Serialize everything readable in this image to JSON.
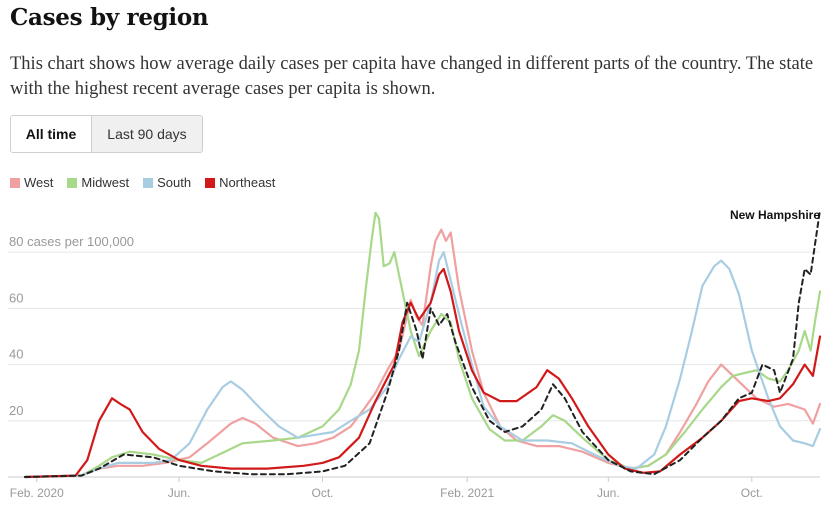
{
  "title": "Cases by region",
  "description": "This chart shows how average daily cases per capita have changed in different parts of the country. The state with the highest recent average cases per capita is shown.",
  "tabs": [
    {
      "label": "All time",
      "active": true
    },
    {
      "label": "Last 90 days",
      "active": false
    }
  ],
  "legend": [
    {
      "name": "West",
      "color": "#f0a0a0"
    },
    {
      "name": "Midwest",
      "color": "#a8d88a"
    },
    {
      "name": "South",
      "color": "#a8cde3"
    },
    {
      "name": "Northeast",
      "color": "#d11919"
    }
  ],
  "chart_data": {
    "type": "line",
    "ylim": [
      0,
      95
    ],
    "y_ticks": [
      20,
      40,
      60,
      80
    ],
    "y_tick_labels": [
      "20",
      "40",
      "60",
      "80 cases per 100,000"
    ],
    "x_tick_labels": [
      {
        "label": "Feb. 2020",
        "date": "2020-02-01"
      },
      {
        "label": "Jun.",
        "date": "2020-06-01"
      },
      {
        "label": "Oct.",
        "date": "2020-10-01"
      },
      {
        "label": "Feb. 2021",
        "date": "2021-02-01"
      },
      {
        "label": "Jun.",
        "date": "2021-06-01"
      },
      {
        "label": "Oct.",
        "date": "2021-10-01"
      }
    ],
    "highlight_label": "New Hampshire",
    "series": [
      {
        "name": "West",
        "color": "#f0a0a0",
        "points": [
          [
            "2020-01-22",
            0
          ],
          [
            "2020-03-10",
            0.5
          ],
          [
            "2020-03-25",
            3
          ],
          [
            "2020-04-10",
            4
          ],
          [
            "2020-05-01",
            4
          ],
          [
            "2020-05-20",
            5
          ],
          [
            "2020-06-10",
            7
          ],
          [
            "2020-06-25",
            12
          ],
          [
            "2020-07-15",
            19
          ],
          [
            "2020-07-25",
            21
          ],
          [
            "2020-08-05",
            19
          ],
          [
            "2020-08-20",
            14
          ],
          [
            "2020-09-10",
            11
          ],
          [
            "2020-09-25",
            12
          ],
          [
            "2020-10-10",
            14
          ],
          [
            "2020-10-25",
            18
          ],
          [
            "2020-11-05",
            24
          ],
          [
            "2020-11-15",
            30
          ],
          [
            "2020-11-25",
            38
          ],
          [
            "2020-12-05",
            45
          ],
          [
            "2020-12-10",
            54
          ],
          [
            "2020-12-15",
            63
          ],
          [
            "2020-12-20",
            57
          ],
          [
            "2020-12-25",
            54
          ],
          [
            "2021-01-01",
            75
          ],
          [
            "2021-01-05",
            84
          ],
          [
            "2021-01-10",
            88
          ],
          [
            "2021-01-14",
            84
          ],
          [
            "2021-01-18",
            87
          ],
          [
            "2021-01-25",
            67
          ],
          [
            "2021-02-05",
            45
          ],
          [
            "2021-02-15",
            30
          ],
          [
            "2021-03-01",
            18
          ],
          [
            "2021-03-15",
            13
          ],
          [
            "2021-04-01",
            11
          ],
          [
            "2021-04-20",
            11
          ],
          [
            "2021-05-10",
            9
          ],
          [
            "2021-06-01",
            5
          ],
          [
            "2021-06-20",
            3
          ],
          [
            "2021-07-05",
            4
          ],
          [
            "2021-07-20",
            8
          ],
          [
            "2021-08-01",
            16
          ],
          [
            "2021-08-15",
            26
          ],
          [
            "2021-08-25",
            34
          ],
          [
            "2021-09-05",
            40
          ],
          [
            "2021-09-15",
            36
          ],
          [
            "2021-09-25",
            32
          ],
          [
            "2021-10-05",
            28
          ],
          [
            "2021-10-20",
            25
          ],
          [
            "2021-11-01",
            26
          ],
          [
            "2021-11-15",
            24
          ],
          [
            "2021-11-22",
            19
          ],
          [
            "2021-11-28",
            26
          ]
        ]
      },
      {
        "name": "Midwest",
        "color": "#a8d88a",
        "points": [
          [
            "2020-01-22",
            0
          ],
          [
            "2020-03-10",
            0.5
          ],
          [
            "2020-03-25",
            4
          ],
          [
            "2020-04-05",
            7
          ],
          [
            "2020-04-20",
            9
          ],
          [
            "2020-05-10",
            8
          ],
          [
            "2020-06-01",
            6
          ],
          [
            "2020-06-20",
            5
          ],
          [
            "2020-07-10",
            9
          ],
          [
            "2020-07-25",
            12
          ],
          [
            "2020-08-20",
            13
          ],
          [
            "2020-09-10",
            14
          ],
          [
            "2020-10-01",
            18
          ],
          [
            "2020-10-15",
            24
          ],
          [
            "2020-10-25",
            33
          ],
          [
            "2020-11-01",
            45
          ],
          [
            "2020-11-07",
            68
          ],
          [
            "2020-11-12",
            85
          ],
          [
            "2020-11-15",
            94
          ],
          [
            "2020-11-18",
            92
          ],
          [
            "2020-11-22",
            75
          ],
          [
            "2020-11-27",
            76
          ],
          [
            "2020-12-01",
            80
          ],
          [
            "2020-12-08",
            66
          ],
          [
            "2020-12-15",
            52
          ],
          [
            "2020-12-22",
            43
          ],
          [
            "2021-01-01",
            52
          ],
          [
            "2021-01-10",
            58
          ],
          [
            "2021-01-18",
            55
          ],
          [
            "2021-01-25",
            42
          ],
          [
            "2021-02-05",
            28
          ],
          [
            "2021-02-20",
            17
          ],
          [
            "2021-03-05",
            13
          ],
          [
            "2021-03-20",
            13
          ],
          [
            "2021-04-05",
            18
          ],
          [
            "2021-04-15",
            22
          ],
          [
            "2021-04-25",
            20
          ],
          [
            "2021-05-10",
            14
          ],
          [
            "2021-06-01",
            6
          ],
          [
            "2021-06-20",
            3
          ],
          [
            "2021-07-05",
            4
          ],
          [
            "2021-07-20",
            8
          ],
          [
            "2021-08-05",
            16
          ],
          [
            "2021-08-20",
            24
          ],
          [
            "2021-09-05",
            32
          ],
          [
            "2021-09-15",
            36
          ],
          [
            "2021-09-25",
            37
          ],
          [
            "2021-10-05",
            38
          ],
          [
            "2021-10-15",
            35
          ],
          [
            "2021-10-25",
            34
          ],
          [
            "2021-11-01",
            38
          ],
          [
            "2021-11-10",
            45
          ],
          [
            "2021-11-15",
            52
          ],
          [
            "2021-11-20",
            45
          ],
          [
            "2021-11-24",
            56
          ],
          [
            "2021-11-28",
            66
          ]
        ]
      },
      {
        "name": "South",
        "color": "#a8cde3",
        "points": [
          [
            "2020-01-22",
            0
          ],
          [
            "2020-03-10",
            0.5
          ],
          [
            "2020-03-25",
            3
          ],
          [
            "2020-04-10",
            5
          ],
          [
            "2020-05-10",
            5
          ],
          [
            "2020-05-25",
            6
          ],
          [
            "2020-06-10",
            12
          ],
          [
            "2020-06-25",
            24
          ],
          [
            "2020-07-08",
            32
          ],
          [
            "2020-07-15",
            34
          ],
          [
            "2020-07-25",
            31
          ],
          [
            "2020-08-10",
            24
          ],
          [
            "2020-08-25",
            18
          ],
          [
            "2020-09-10",
            14
          ],
          [
            "2020-09-25",
            15
          ],
          [
            "2020-10-10",
            16
          ],
          [
            "2020-10-25",
            20
          ],
          [
            "2020-11-10",
            24
          ],
          [
            "2020-11-25",
            32
          ],
          [
            "2020-12-05",
            42
          ],
          [
            "2020-12-15",
            50
          ],
          [
            "2020-12-22",
            48
          ],
          [
            "2021-01-01",
            62
          ],
          [
            "2021-01-08",
            77
          ],
          [
            "2021-01-12",
            80
          ],
          [
            "2021-01-18",
            70
          ],
          [
            "2021-01-25",
            58
          ],
          [
            "2021-02-05",
            40
          ],
          [
            "2021-02-15",
            25
          ],
          [
            "2021-03-01",
            18
          ],
          [
            "2021-03-20",
            13
          ],
          [
            "2021-04-10",
            13
          ],
          [
            "2021-05-01",
            12
          ],
          [
            "2021-05-20",
            8
          ],
          [
            "2021-06-10",
            4
          ],
          [
            "2021-06-25",
            3
          ],
          [
            "2021-07-10",
            8
          ],
          [
            "2021-07-20",
            18
          ],
          [
            "2021-08-01",
            35
          ],
          [
            "2021-08-10",
            50
          ],
          [
            "2021-08-20",
            68
          ],
          [
            "2021-08-30",
            75
          ],
          [
            "2021-09-05",
            77
          ],
          [
            "2021-09-12",
            74
          ],
          [
            "2021-09-20",
            65
          ],
          [
            "2021-10-01",
            45
          ],
          [
            "2021-10-15",
            28
          ],
          [
            "2021-10-25",
            18
          ],
          [
            "2021-11-05",
            13
          ],
          [
            "2021-11-15",
            12
          ],
          [
            "2021-11-22",
            11
          ],
          [
            "2021-11-28",
            17
          ]
        ]
      },
      {
        "name": "Northeast",
        "color": "#d11919",
        "points": [
          [
            "2020-01-22",
            0
          ],
          [
            "2020-03-05",
            0.5
          ],
          [
            "2020-03-15",
            6
          ],
          [
            "2020-03-25",
            20
          ],
          [
            "2020-04-05",
            28
          ],
          [
            "2020-04-12",
            26
          ],
          [
            "2020-04-20",
            24
          ],
          [
            "2020-05-01",
            16
          ],
          [
            "2020-05-15",
            10
          ],
          [
            "2020-06-01",
            6
          ],
          [
            "2020-06-20",
            4
          ],
          [
            "2020-07-15",
            3
          ],
          [
            "2020-08-15",
            3
          ],
          [
            "2020-09-15",
            4
          ],
          [
            "2020-10-01",
            5
          ],
          [
            "2020-10-15",
            7
          ],
          [
            "2020-11-01",
            14
          ],
          [
            "2020-11-15",
            27
          ],
          [
            "2020-12-01",
            40
          ],
          [
            "2020-12-08",
            55
          ],
          [
            "2020-12-15",
            62
          ],
          [
            "2020-12-22",
            56
          ],
          [
            "2021-01-01",
            62
          ],
          [
            "2021-01-08",
            72
          ],
          [
            "2021-01-12",
            74
          ],
          [
            "2021-01-18",
            66
          ],
          [
            "2021-01-25",
            52
          ],
          [
            "2021-02-05",
            38
          ],
          [
            "2021-02-15",
            30
          ],
          [
            "2021-03-01",
            27
          ],
          [
            "2021-03-15",
            27
          ],
          [
            "2021-04-01",
            32
          ],
          [
            "2021-04-10",
            38
          ],
          [
            "2021-04-20",
            35
          ],
          [
            "2021-05-01",
            28
          ],
          [
            "2021-05-15",
            18
          ],
          [
            "2021-06-01",
            8
          ],
          [
            "2021-06-15",
            3
          ],
          [
            "2021-07-01",
            1.5
          ],
          [
            "2021-07-15",
            2
          ],
          [
            "2021-08-01",
            8
          ],
          [
            "2021-08-20",
            14
          ],
          [
            "2021-09-05",
            20
          ],
          [
            "2021-09-20",
            27
          ],
          [
            "2021-10-01",
            28
          ],
          [
            "2021-10-15",
            27
          ],
          [
            "2021-10-25",
            28
          ],
          [
            "2021-11-05",
            33
          ],
          [
            "2021-11-15",
            40
          ],
          [
            "2021-11-22",
            36
          ],
          [
            "2021-11-28",
            50
          ]
        ]
      },
      {
        "name": "New Hampshire",
        "color": "#222222",
        "dashed": true,
        "points": [
          [
            "2020-01-22",
            0
          ],
          [
            "2020-03-10",
            0.5
          ],
          [
            "2020-03-25",
            3
          ],
          [
            "2020-04-15",
            8
          ],
          [
            "2020-05-10",
            7
          ],
          [
            "2020-06-01",
            4
          ],
          [
            "2020-07-01",
            2
          ],
          [
            "2020-08-01",
            1
          ],
          [
            "2020-09-01",
            1
          ],
          [
            "2020-10-01",
            2
          ],
          [
            "2020-10-20",
            4
          ],
          [
            "2020-11-10",
            12
          ],
          [
            "2020-11-25",
            30
          ],
          [
            "2020-12-05",
            45
          ],
          [
            "2020-12-12",
            62
          ],
          [
            "2020-12-20",
            52
          ],
          [
            "2020-12-25",
            42
          ],
          [
            "2021-01-01",
            60
          ],
          [
            "2021-01-08",
            54
          ],
          [
            "2021-01-15",
            58
          ],
          [
            "2021-01-22",
            48
          ],
          [
            "2021-02-05",
            32
          ],
          [
            "2021-02-20",
            20
          ],
          [
            "2021-03-05",
            16
          ],
          [
            "2021-03-20",
            18
          ],
          [
            "2021-04-05",
            24
          ],
          [
            "2021-04-15",
            33
          ],
          [
            "2021-04-25",
            28
          ],
          [
            "2021-05-10",
            16
          ],
          [
            "2021-06-01",
            6
          ],
          [
            "2021-06-20",
            2
          ],
          [
            "2021-07-10",
            1
          ],
          [
            "2021-08-01",
            6
          ],
          [
            "2021-08-20",
            14
          ],
          [
            "2021-09-05",
            20
          ],
          [
            "2021-09-20",
            28
          ],
          [
            "2021-10-01",
            30
          ],
          [
            "2021-10-10",
            40
          ],
          [
            "2021-10-20",
            38
          ],
          [
            "2021-10-25",
            30
          ],
          [
            "2021-11-05",
            42
          ],
          [
            "2021-11-10",
            62
          ],
          [
            "2021-11-15",
            74
          ],
          [
            "2021-11-20",
            72
          ],
          [
            "2021-11-28",
            95
          ]
        ]
      }
    ]
  }
}
